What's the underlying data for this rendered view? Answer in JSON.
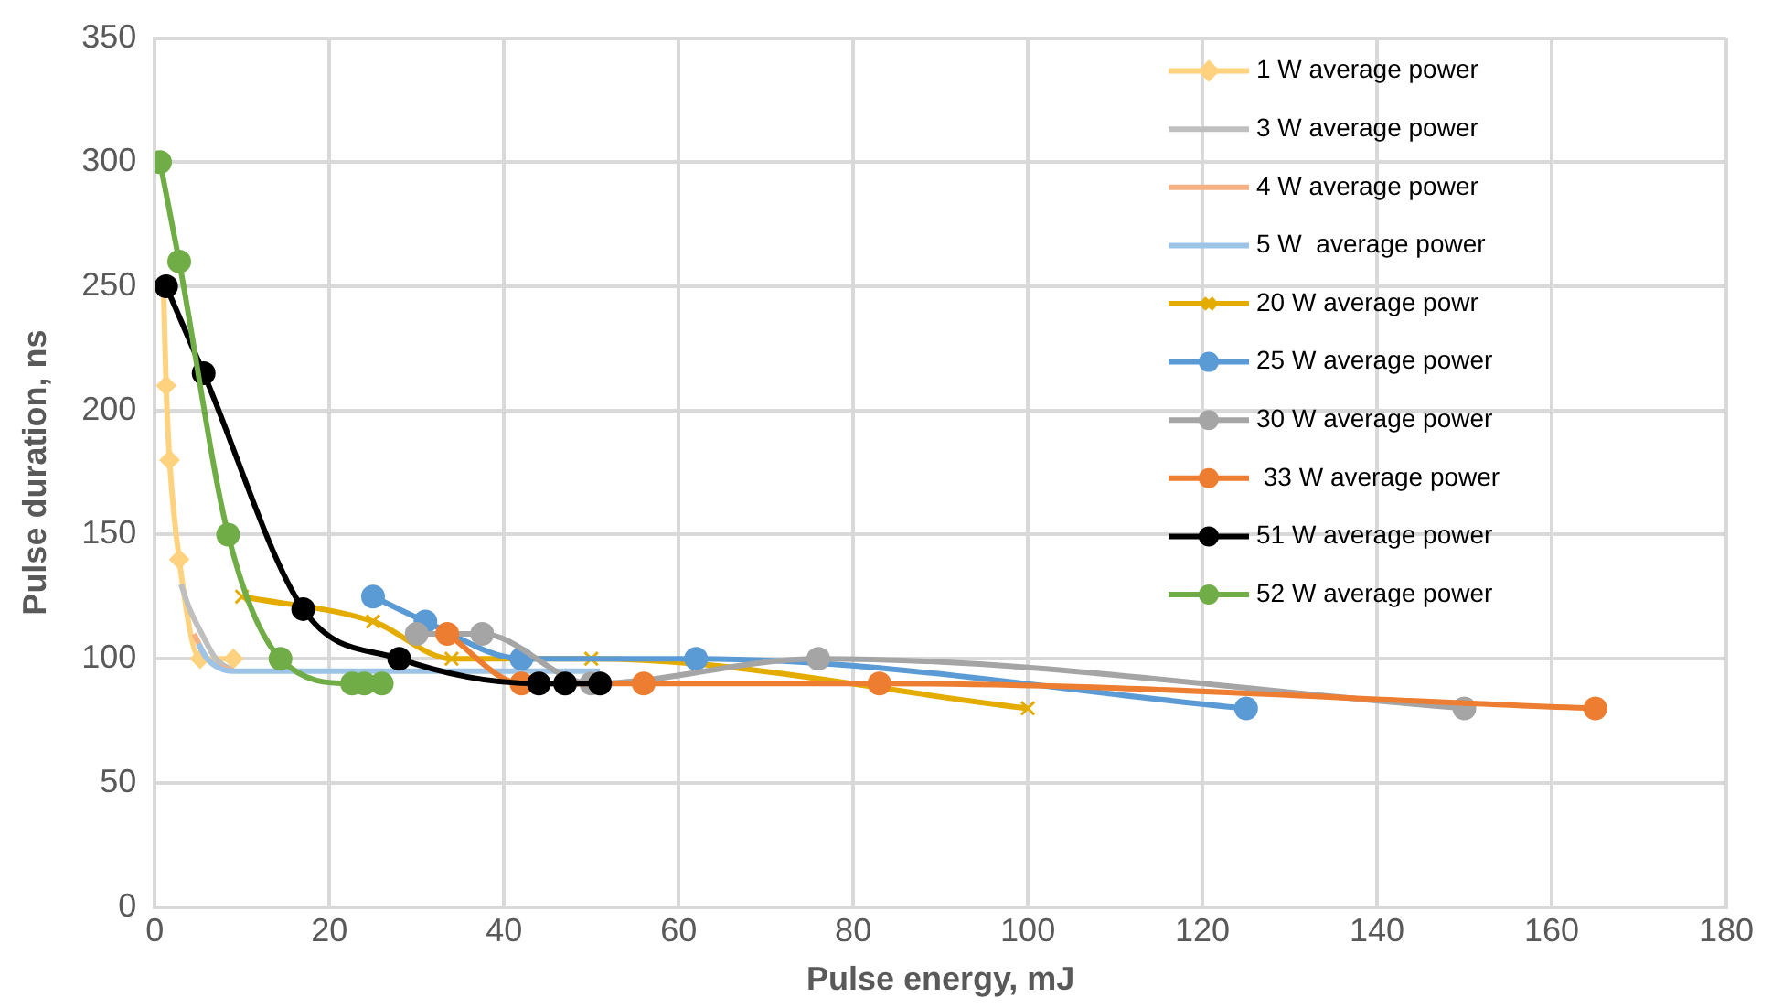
{
  "chart_data": {
    "type": "line",
    "xlabel": "Pulse energy, mJ",
    "ylabel": "Pulse duration, ns",
    "xlim": [
      0,
      180
    ],
    "xticks": [
      0,
      20,
      40,
      60,
      80,
      100,
      120,
      140,
      160,
      180
    ],
    "ylim": [
      0,
      350
    ],
    "yticks": [
      0,
      50,
      100,
      150,
      200,
      250,
      300,
      350
    ],
    "grid": true,
    "legend": "top right",
    "line_style": "solid",
    "series": [
      {
        "name": "1 W average power",
        "color": "#ffd27f",
        "marker": "diamond",
        "x": [
          1,
          1.3,
          1.7,
          2.8,
          5.2,
          9
        ],
        "values": [
          250,
          210,
          180,
          140,
          100,
          100
        ]
      },
      {
        "name": "3 W average power",
        "color": "#bfbfbf",
        "marker": "none",
        "x": [
          3,
          4,
          5.4,
          7,
          9
        ],
        "values": [
          130,
          120,
          110,
          100,
          95
        ]
      },
      {
        "name": "4 W average power",
        "color": "#f4b183",
        "marker": "none",
        "x": [
          4.5,
          6,
          9
        ],
        "values": [
          110,
          100,
          95
        ]
      },
      {
        "name": "5 W  average power",
        "color": "#9dc3e6",
        "marker": "none",
        "x": [
          5,
          6,
          9,
          13,
          17.5,
          26,
          35,
          44,
          51
        ],
        "values": [
          106,
          100,
          95,
          95,
          95,
          95,
          95,
          95,
          95
        ]
      },
      {
        "name": "20 W average powr",
        "color": "#e5ac00",
        "marker": "cross",
        "x": [
          10,
          25,
          34,
          50,
          100
        ],
        "values": [
          125,
          115,
          100,
          100,
          80
        ]
      },
      {
        "name": "25 W average power",
        "color": "#5b9bd5",
        "marker": "circle",
        "x": [
          25,
          31,
          42,
          62,
          125
        ],
        "values": [
          125,
          115,
          100,
          100,
          80
        ]
      },
      {
        "name": "30 W average power",
        "color": "#a5a5a5",
        "marker": "circle",
        "x": [
          30,
          37.5,
          50,
          76,
          150
        ],
        "values": [
          110,
          110,
          90,
          100,
          80
        ]
      },
      {
        "name": " 33 W average power",
        "color": "#ed7d31",
        "marker": "circle",
        "x": [
          33.5,
          42,
          56,
          83,
          165
        ],
        "values": [
          110,
          90,
          90,
          90,
          80
        ]
      },
      {
        "name": "51 W average power",
        "color": "#000000",
        "marker": "circle",
        "x": [
          1.3,
          5.6,
          17,
          28,
          44,
          47,
          51
        ],
        "values": [
          250,
          215,
          120,
          100,
          90,
          90,
          90
        ]
      },
      {
        "name": "52 W average power",
        "color": "#70ad47",
        "marker": "circle",
        "x": [
          0.6,
          2.8,
          8.4,
          14.4,
          22.6,
          24,
          26
        ],
        "values": [
          300,
          260,
          150,
          100,
          90,
          90,
          90
        ]
      }
    ]
  }
}
